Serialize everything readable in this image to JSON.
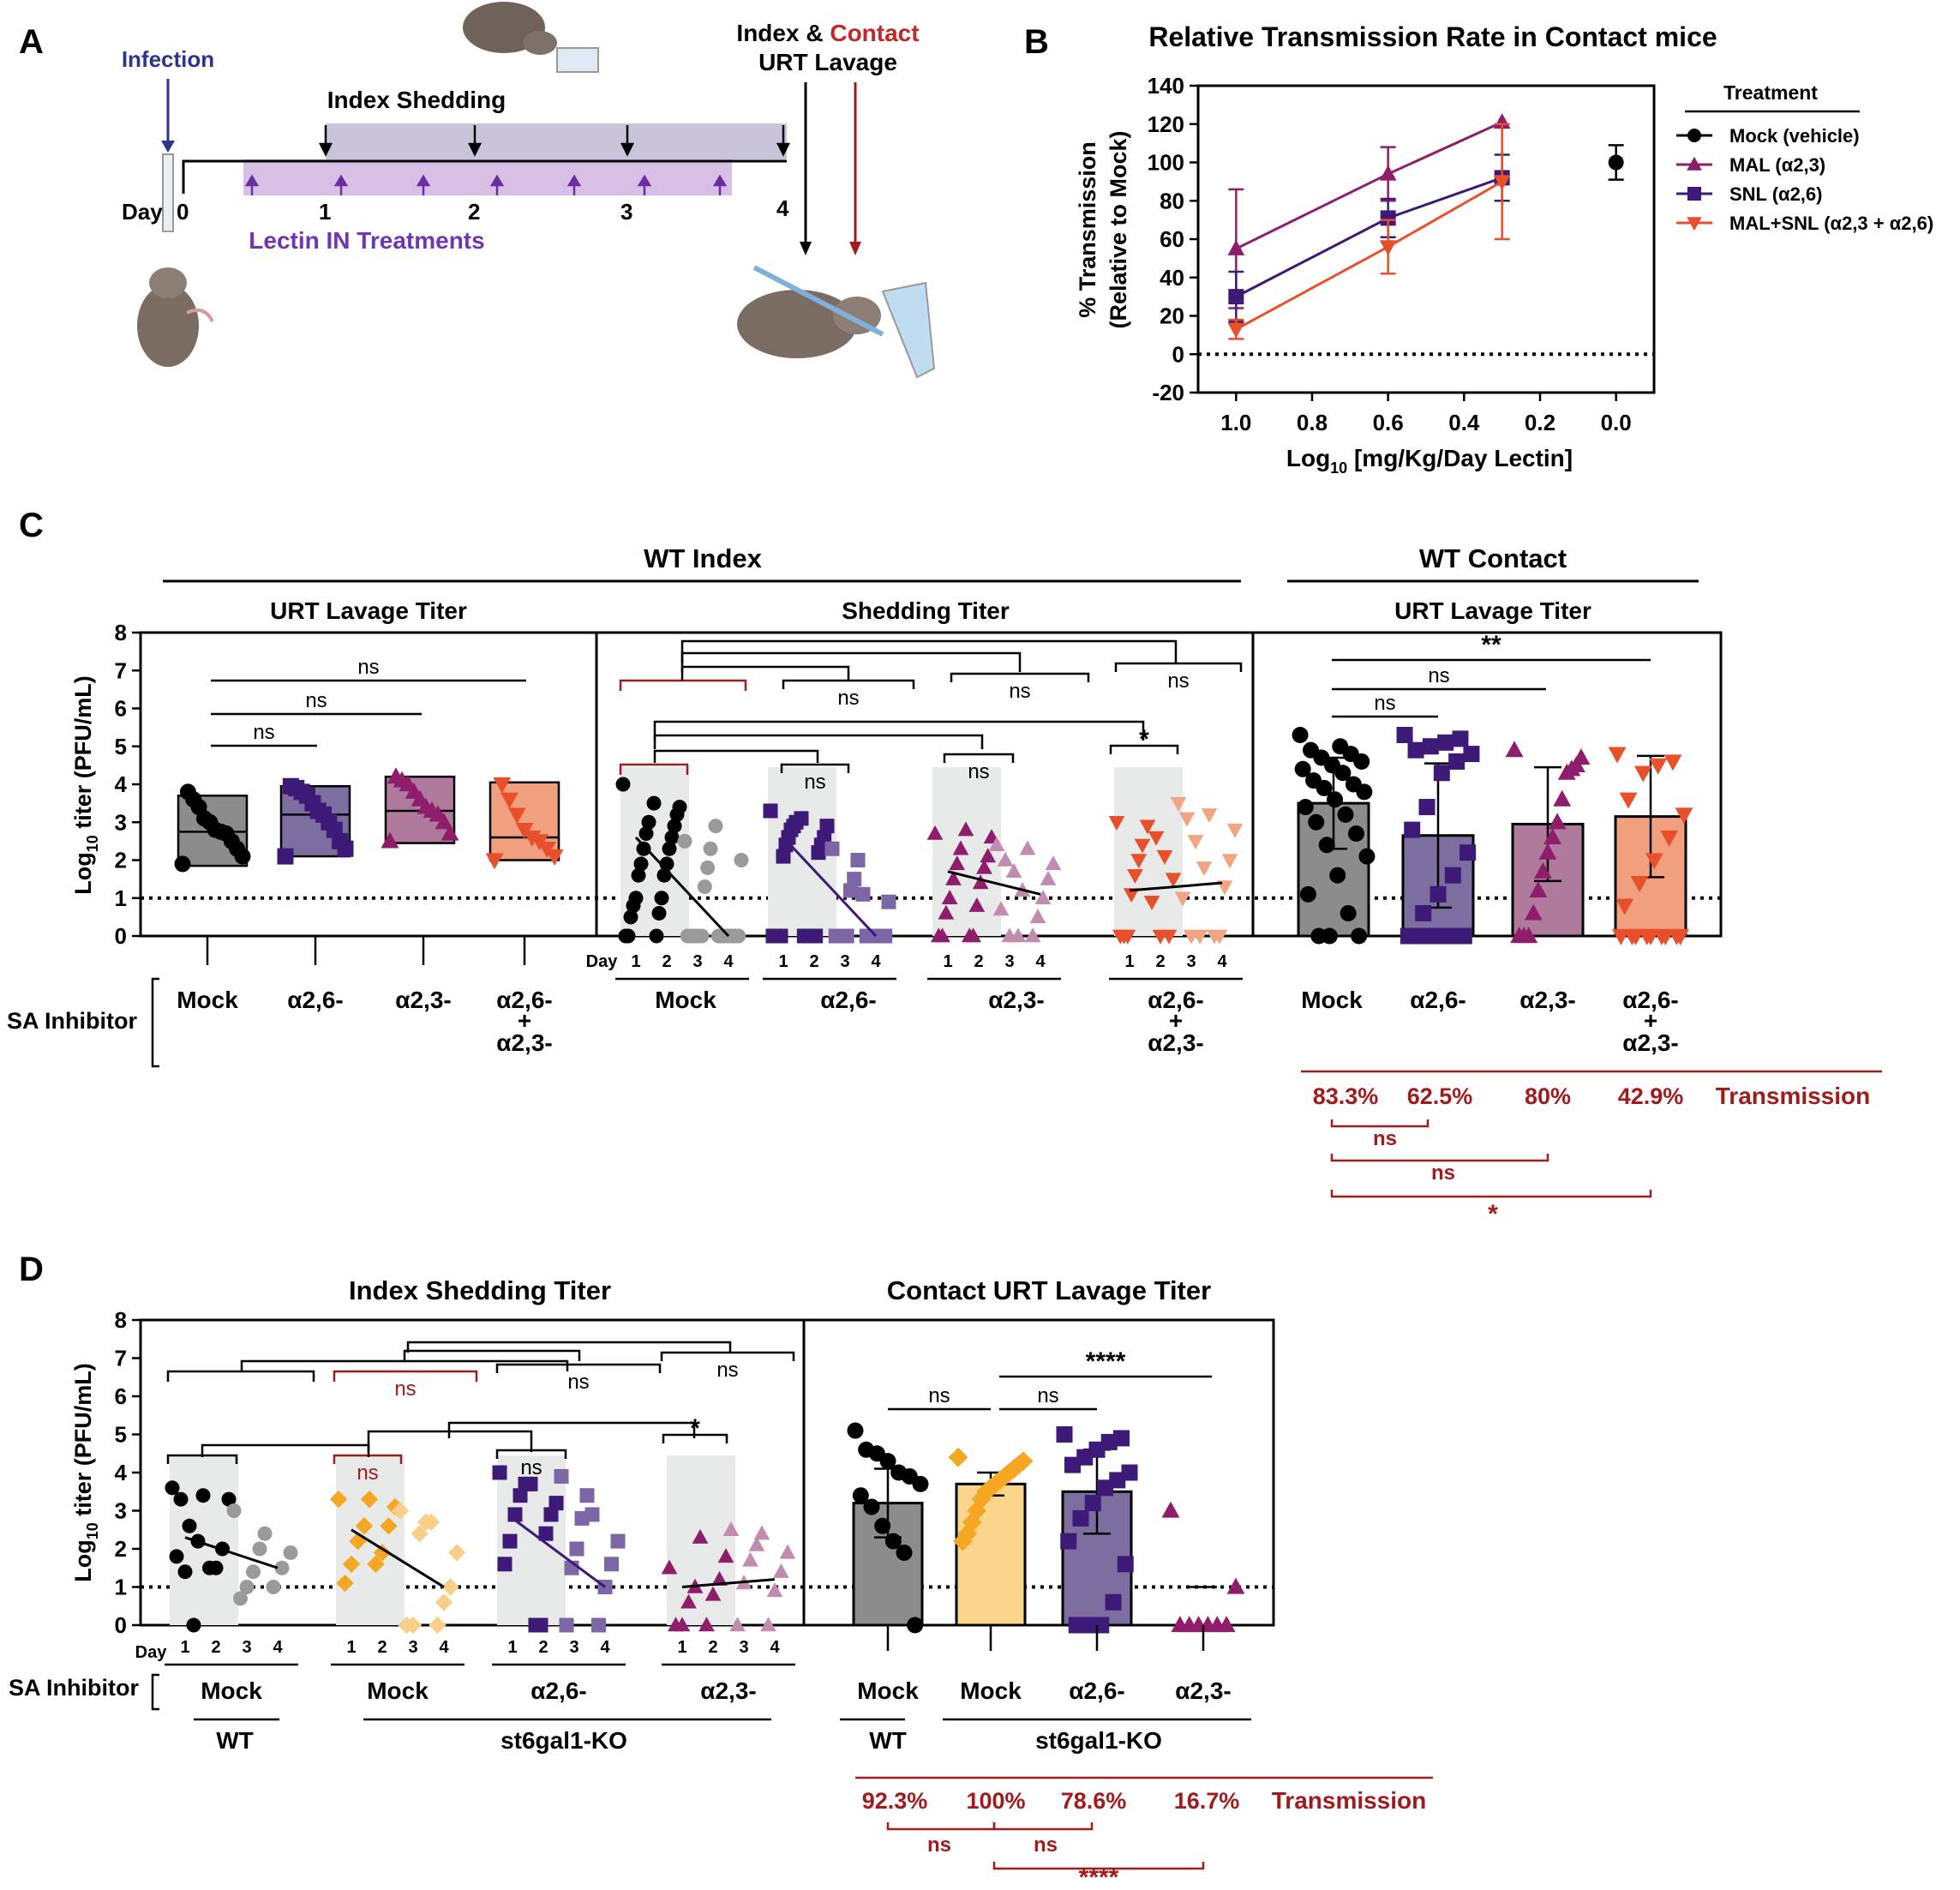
{
  "panels": {
    "A": "A",
    "B": "B",
    "C": "C",
    "D": "D"
  },
  "colors": {
    "mock": "#000000",
    "mock_light": "#9a9a9a",
    "a26": "#3d1a78",
    "a26_light": "#7c66a6",
    "a23": "#8e1e6b",
    "a23_light": "#c28bb0",
    "combo": "#e8502b",
    "combo_light": "#f2a583",
    "ko_mock": "#f5a623",
    "ko_mock_light": "#f8cf8a",
    "red_sig": "#a01c1c",
    "shade": "#e8e9e9",
    "mock_bar": "#8c8c8c",
    "a26_bar": "#7d6ea0",
    "a23_bar": "#b07a9c",
    "combo_bar": "#f0a07f",
    "ko_bar": "#fcd58c"
  },
  "panelA": {
    "infection": "Infection",
    "index_shedding": "Index Shedding",
    "index_contact_1": "Index & ",
    "index_contact_2": "Contact",
    "urt_lavage": "URT Lavage",
    "day_label": "Day",
    "days": [
      "0",
      "1",
      "2",
      "3",
      "4"
    ],
    "lectin": "Lectin IN Treatments"
  },
  "chart_data": [
    {
      "id": "B",
      "type": "line",
      "title": "Relative Transmission Rate in Contact mice",
      "xlabel": "Log10 [mg/Kg/Day Lectin]",
      "ylabel_1": "% Transmission",
      "ylabel_2": "(Relative to Mock)",
      "xlim": [
        1.1,
        -0.1
      ],
      "ylim": [
        -20,
        140
      ],
      "xticks": [
        "1.0",
        "0.8",
        "0.6",
        "0.4",
        "0.2",
        "0.0"
      ],
      "yticks": [
        "140",
        "120",
        "100",
        "80",
        "60",
        "40",
        "20",
        "0",
        "-20"
      ],
      "legend_title": "Treatment",
      "series": [
        {
          "name": "Mock (vehicle)",
          "x": [
            0.0
          ],
          "y": [
            100
          ],
          "err": [
            9
          ]
        },
        {
          "name": "MAL (α2,3)",
          "x": [
            1.0,
            0.6,
            0.3
          ],
          "y": [
            55,
            94,
            121
          ],
          "err": [
            31,
            14,
            0
          ]
        },
        {
          "name": "SNL (α2,6)",
          "x": [
            1.0,
            0.6,
            0.3
          ],
          "y": [
            30,
            71,
            92
          ],
          "err": [
            13,
            10,
            12
          ]
        },
        {
          "name": "MAL+SNL (α2,3 + α2,6)",
          "x": [
            1.0,
            0.6,
            0.3
          ],
          "y": [
            13,
            56,
            90
          ],
          "err": [
            5,
            14,
            30
          ]
        }
      ]
    },
    {
      "id": "C",
      "type": "scatter",
      "header_index": "WT Index",
      "header_contact": "WT Contact",
      "sub_urt": "URT Lavage Titer",
      "sub_shed": "Shedding Titer",
      "sub_contact": "URT Lavage Titer",
      "ylabel": "Log10 titer (PFU/mL)",
      "ylim": [
        0,
        8
      ],
      "yticks": [
        "8",
        "7",
        "6",
        "5",
        "4",
        "3",
        "2",
        "1",
        "0"
      ],
      "day_label": "Day",
      "day_ticks": [
        "1",
        "2",
        "3",
        "4"
      ],
      "sa_label": "SA Inhibitor",
      "groups_1": [
        "Mock",
        "α2,6-",
        "α2,3-",
        "α2,6-"
      ],
      "groups_2": [
        "",
        "",
        "",
        "+"
      ],
      "groups_3": [
        "",
        "",
        "",
        "α2,3-"
      ],
      "urt_boxes": [
        {
          "group": "Mock",
          "min": 1.85,
          "q1": 1.85,
          "median": 2.75,
          "q3": 3.7,
          "max": 3.8,
          "points": [
            1.9,
            2.1,
            2.3,
            2.5,
            2.7,
            2.75,
            2.8,
            3.0,
            3.1,
            3.4,
            3.6,
            3.8
          ]
        },
        {
          "group": "α2,6-",
          "min": 2.1,
          "q1": 2.1,
          "median": 3.2,
          "q3": 3.95,
          "max": 3.95,
          "points": [
            2.1,
            2.3,
            2.5,
            2.8,
            3.0,
            3.2,
            3.3,
            3.5,
            3.7,
            3.8,
            3.9,
            3.95
          ]
        },
        {
          "group": "α2,3-",
          "min": 2.45,
          "q1": 2.45,
          "median": 3.3,
          "q3": 4.2,
          "max": 4.25,
          "points": [
            2.5,
            2.7,
            3.0,
            3.2,
            3.3,
            3.4,
            3.6,
            3.8,
            4.0,
            4.1,
            4.2
          ]
        },
        {
          "group": "α2,6- + α2,3-",
          "min": 2.0,
          "q1": 2.0,
          "median": 2.6,
          "q3": 4.05,
          "max": 4.05,
          "points": [
            2.0,
            2.1,
            2.3,
            2.5,
            2.6,
            2.8,
            3.2,
            3.6,
            4.0
          ]
        }
      ],
      "shedding": [
        {
          "group": "Mock",
          "day1": [
            4.0,
            3.0,
            2.7,
            2.3,
            1.9,
            1.6,
            1.0,
            0.8,
            0.5,
            0.0,
            0.0
          ],
          "day2": [
            3.5,
            3.4,
            3.2,
            2.9,
            2.6,
            2.3,
            1.9,
            1.6,
            1.0,
            0.6,
            0.0
          ],
          "day3": [
            2.5,
            2.3,
            1.8,
            1.3,
            0,
            0,
            0,
            0,
            0,
            0
          ],
          "day4": [
            2.9,
            2.0,
            0,
            0,
            0,
            0,
            0,
            0,
            0,
            0
          ],
          "trend": [
            2.6,
            0.0
          ]
        },
        {
          "group": "α2,6-",
          "day1": [
            3.3,
            3.0,
            2.9,
            2.8,
            2.6,
            2.4,
            2.1,
            0,
            0,
            0,
            0
          ],
          "day2": [
            3.1,
            2.9,
            2.6,
            2.4,
            2.2,
            0,
            0,
            0,
            0,
            0
          ],
          "day3": [
            2.3,
            2.0,
            1.5,
            1.2,
            0,
            0,
            0,
            0
          ],
          "day4": [
            1.1,
            0.9,
            0,
            0,
            0,
            0,
            0,
            0
          ],
          "trend": [
            2.6,
            0.0
          ]
        },
        {
          "group": "α2,3-",
          "day1": [
            2.7,
            2.3,
            1.9,
            1.5,
            1.0,
            0.6,
            0,
            0
          ],
          "day2": [
            2.8,
            2.6,
            2.1,
            1.8,
            1.4,
            0.8,
            0,
            0
          ],
          "day3": [
            2.4,
            2.0,
            1.7,
            1.2,
            0.7,
            0,
            0
          ],
          "day4": [
            2.3,
            1.9,
            1.5,
            1.0,
            0.5,
            0
          ],
          "trend": [
            1.7,
            1.1
          ]
        },
        {
          "group": "α2,6- + α2,3-",
          "day1": [
            3.0,
            2.4,
            2.0,
            1.6,
            1.1,
            0,
            0,
            0
          ],
          "day2": [
            2.9,
            2.6,
            2.1,
            1.5,
            0.9,
            0,
            0
          ],
          "day3": [
            3.5,
            3.1,
            2.5,
            1.8,
            1.0,
            0,
            0
          ],
          "day4": [
            3.2,
            2.8,
            2.0,
            1.3,
            0,
            0
          ],
          "trend": [
            1.2,
            1.4
          ]
        }
      ],
      "contact_bars": [
        {
          "group": "Mock",
          "mean": 3.5,
          "sd": 1.2,
          "points": [
            5.3,
            5.0,
            4.9,
            4.8,
            4.7,
            4.6,
            4.5,
            4.4,
            4.3,
            4.1,
            4.0,
            3.9,
            3.8,
            3.6,
            3.4,
            3.2,
            3.0,
            2.7,
            2.4,
            2.1,
            1.6,
            1.1,
            0.6,
            0,
            0,
            0
          ]
        },
        {
          "group": "α2,6-",
          "mean": 2.65,
          "sd": 1.9,
          "points": [
            5.3,
            5.2,
            5.1,
            5.0,
            4.9,
            4.8,
            4.6,
            4.3,
            3.4,
            2.8,
            2.2,
            1.6,
            1.1,
            0.6,
            0,
            0,
            0,
            0,
            0
          ]
        },
        {
          "group": "α2,3-",
          "mean": 2.95,
          "sd": 1.5,
          "points": [
            4.9,
            4.7,
            4.5,
            4.4,
            4.3,
            3.6,
            3.0,
            2.6,
            2.2,
            1.7,
            1.2,
            0.6,
            0,
            0,
            0
          ]
        },
        {
          "group": "α2,6- + α2,3-",
          "mean": 3.15,
          "sd": 1.6,
          "points": [
            4.8,
            4.6,
            4.5,
            4.3,
            3.6,
            3.2,
            2.6,
            2.0,
            1.4,
            0.8,
            0,
            0,
            0,
            0,
            0,
            0,
            0,
            0,
            0
          ]
        }
      ],
      "sig_urt": [
        "ns",
        "ns",
        "ns"
      ],
      "sig_shed_top": [
        "ns",
        "ns",
        "ns"
      ],
      "sig_shed_low": [
        "ns",
        "ns",
        "*"
      ],
      "sig_contact": [
        "ns",
        "ns",
        "**"
      ],
      "transmission": [
        "83.3%",
        "62.5%",
        "80%",
        "42.9%"
      ],
      "transmission_label": "Transmission",
      "trans_sig": [
        "ns",
        "ns",
        "*"
      ]
    },
    {
      "id": "D",
      "type": "scatter",
      "header_shed": "Index Shedding Titer",
      "header_contact": "Contact URT Lavage Titer",
      "ylabel": "Log10 titer (PFU/mL)",
      "ylim": [
        0,
        8
      ],
      "yticks": [
        "8",
        "7",
        "6",
        "5",
        "4",
        "3",
        "2",
        "1",
        "0"
      ],
      "day_label": "Day",
      "day_ticks": [
        "1",
        "2",
        "3",
        "4"
      ],
      "sa_label": "SA Inhibitor",
      "groups": [
        "Mock",
        "Mock",
        "α2,6-",
        "α2,3-"
      ],
      "contact_groups": [
        "Mock",
        "Mock",
        "α2,6-",
        "α2,3-"
      ],
      "strain_wt": "WT",
      "strain_ko": "st6gal1-KO",
      "shedding": [
        {
          "group": "WT Mock",
          "day1": [
            3.6,
            3.3,
            2.6,
            2.2,
            1.8,
            1.4,
            0
          ],
          "day2": [
            3.4,
            3.3,
            2.0,
            1.5,
            1.5
          ],
          "day3": [
            3.0,
            2.0,
            1.4,
            1.0,
            0.7
          ],
          "day4": [
            2.4,
            1.9,
            1.5,
            1.0
          ],
          "trend": [
            2.3,
            1.5
          ]
        },
        {
          "group": "KO Mock",
          "day1": [
            3.3,
            2.6,
            2.2,
            1.6,
            1.1
          ],
          "day2": [
            3.3,
            3.1,
            2.6,
            1.9,
            1.6
          ],
          "day3": [
            3.0,
            2.7,
            2.4,
            0,
            0
          ],
          "day4": [
            2.7,
            1.9,
            1.0,
            0.6,
            0
          ],
          "trend": [
            2.5,
            1.0
          ]
        },
        {
          "group": "KO α2,6-",
          "day1": [
            4.0,
            3.7,
            3.4,
            2.9,
            2.2,
            1.6
          ],
          "day2": [
            3.7,
            3.2,
            2.9,
            2.4,
            0,
            0
          ],
          "day3": [
            3.9,
            3.4,
            2.8,
            2.0,
            1.5,
            0
          ],
          "day4": [
            2.9,
            2.2,
            1.6,
            1.0,
            0
          ],
          "trend": [
            2.8,
            1.0
          ]
        },
        {
          "group": "KO α2,3-",
          "day1": [
            1.5,
            1.0,
            0.6,
            0,
            0
          ],
          "day2": [
            2.3,
            1.8,
            1.2,
            0.8,
            0
          ],
          "day3": [
            2.5,
            2.1,
            1.7,
            1.1,
            0
          ],
          "day4": [
            2.4,
            1.9,
            1.4,
            0.9,
            0
          ],
          "trend": [
            1.0,
            1.2
          ]
        }
      ],
      "contact_bars": [
        {
          "group": "WT Mock",
          "mean": 3.2,
          "sd": 0.9,
          "points": [
            5.1,
            4.6,
            4.5,
            4.3,
            4.0,
            3.9,
            3.7,
            3.4,
            3.1,
            2.6,
            2.2,
            1.9,
            0
          ]
        },
        {
          "group": "KO Mock",
          "mean": 3.7,
          "sd": 0.3,
          "points": [
            4.4,
            4.3,
            4.2,
            4.1,
            4.0,
            3.9,
            3.8,
            3.7,
            3.6,
            3.5,
            3.3,
            3.0,
            2.7,
            2.4,
            2.2
          ]
        },
        {
          "group": "KO α2,6-",
          "mean": 3.5,
          "sd": 1.1,
          "points": [
            5.0,
            4.9,
            4.8,
            4.6,
            4.4,
            4.2,
            4.0,
            3.8,
            3.6,
            3.2,
            2.8,
            2.2,
            1.6,
            0.6,
            0,
            0,
            0
          ]
        },
        {
          "group": "KO α2,3-",
          "mean": 0.5,
          "sd": 0.5,
          "points": [
            3.0,
            1.0,
            0,
            0,
            0,
            0,
            0,
            0
          ]
        }
      ],
      "sig_shed_top": [
        "ns",
        "ns",
        "ns"
      ],
      "sig_shed_low": [
        "ns",
        "ns",
        "*"
      ],
      "sig_contact": [
        "ns",
        "ns",
        "****"
      ],
      "transmission": [
        "92.3%",
        "100%",
        "78.6%",
        "16.7%"
      ],
      "transmission_label": "Transmission",
      "trans_sig": [
        "ns",
        "ns",
        "****"
      ]
    }
  ]
}
